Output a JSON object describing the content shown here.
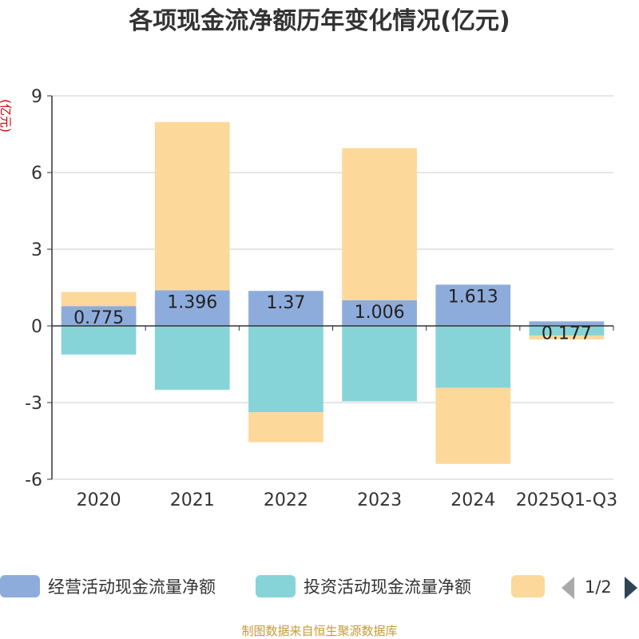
{
  "chart_data": {
    "type": "bar",
    "stacked": true,
    "title": "各项现金流净额历年变化情况(亿元)",
    "ylabel": "(亿元)",
    "xlabel": "",
    "categories": [
      "2020",
      "2021",
      "2022",
      "2023",
      "2024",
      "2025Q1-Q3"
    ],
    "ylim": [
      -6,
      9
    ],
    "yticks": [
      9,
      6,
      3,
      0,
      -3,
      -6
    ],
    "series": [
      {
        "name": "经营活动现金流量净额",
        "color": "#8eacdb",
        "values": [
          0.775,
          1.396,
          1.37,
          1.006,
          1.613,
          0.177
        ],
        "labels": [
          "0.775",
          "1.396",
          "1.37",
          "1.006",
          "1.613",
          "0.177"
        ]
      },
      {
        "name": "投资活动现金流量净额",
        "color": "#86d4d8",
        "values": [
          -1.12,
          -2.5,
          -3.38,
          -2.95,
          -2.42,
          -0.38
        ]
      },
      {
        "name": "",
        "color": "#fdd89b",
        "values": [
          0.55,
          6.58,
          -1.17,
          5.95,
          -2.98,
          -0.15
        ]
      }
    ],
    "grid": true,
    "legend_position": "bottom"
  },
  "legend": {
    "page": "1/2"
  },
  "source": "制图数据来自恒生聚源数据库"
}
